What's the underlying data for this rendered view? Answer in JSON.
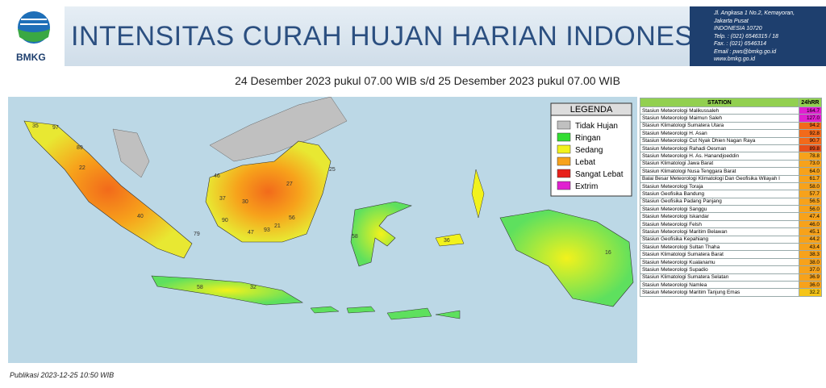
{
  "header": {
    "logo": "BMKG",
    "title": "INTENSITAS CURAH HUJAN HARIAN INDONESIA",
    "address": [
      "Jl. Angkasa 1 No.2, Kemayoran,",
      "Jakarta Pusat",
      "INDONESIA 10720",
      "Telp.  : (021) 6546315 / 18",
      "Fax.   : (021) 6546314",
      "Email : pws@bmkg.go.id",
      "www.bmkg.go.id"
    ]
  },
  "subtitle": "24 Desember 2023 pukul 07.00 WIB s/d 25 Desember 2023 pukul 07.00 WIB",
  "legend": {
    "title": "LEGENDA",
    "items": [
      {
        "label": "Tidak Hujan",
        "color": "#c0c0c0"
      },
      {
        "label": "Ringan",
        "color": "#33dd33"
      },
      {
        "label": "Sedang",
        "color": "#f2f21c"
      },
      {
        "label": "Lebat",
        "color": "#f7a21b"
      },
      {
        "label": "Sangat Lebat",
        "color": "#e8201a"
      },
      {
        "label": "Extrim",
        "color": "#e020d0"
      }
    ]
  },
  "map_labels": [
    "35",
    "97",
    "89",
    "22",
    "40",
    "46",
    "37",
    "30",
    "27",
    "56",
    "93",
    "47",
    "21",
    "90",
    "79",
    "58",
    "36",
    "16",
    "32",
    "58",
    "25"
  ],
  "table": {
    "columns": [
      "STATION",
      "24hRR"
    ],
    "rows": [
      [
        "Stasiun Meteorologi Malikussaleh",
        "164.7",
        "#e020d0"
      ],
      [
        "Stasiun Meteorologi Maimun Saleh",
        "127.0",
        "#e020d0"
      ],
      [
        "Stasiun Klimatologi Sumatera Utara",
        "94.2",
        "#f26a1b"
      ],
      [
        "Stasiun Meteorologi H. Asan",
        "92.8",
        "#f26a1b"
      ],
      [
        "Stasiun Meteorologi Cut Nyak Dhien Nagan Raya",
        "90.7",
        "#f26a1b"
      ],
      [
        "Stasiun Meteorologi Rahadi Oesman",
        "89.8",
        "#e8501a"
      ],
      [
        "Stasiun Meteorologi H. As. Hanandjoeddin",
        "78.8",
        "#f7a21b"
      ],
      [
        "Stasiun Klimatologi Jawa Barat",
        "73.0",
        "#f7a21b"
      ],
      [
        "Stasiun Klimatologi Nusa Tenggara Barat",
        "64.0",
        "#f7a21b"
      ],
      [
        "Balai Besar Meteorologi Klimatologi Dan Geofisika Wilayah I",
        "61.7",
        "#f7a21b"
      ],
      [
        "Stasiun Meteorologi Toraja",
        "58.0",
        "#f7a21b"
      ],
      [
        "Stasiun Geofisika Bandung",
        "57.7",
        "#f7a21b"
      ],
      [
        "Stasiun Geofisika Padang Panjang",
        "56.5",
        "#f7a21b"
      ],
      [
        "Stasiun Meteorologi Sanggu",
        "56.0",
        "#f7a21b"
      ],
      [
        "Stasiun Meteorologi Iskandar",
        "47.4",
        "#f7a21b"
      ],
      [
        "Stasiun Meteorologi Felsh",
        "46.0",
        "#f7a21b"
      ],
      [
        "Stasiun Meteorologi Maritim Belawan",
        "45.1",
        "#f7a21b"
      ],
      [
        "Stasiun Geofisika Kepahiang",
        "44.2",
        "#f7a21b"
      ],
      [
        "Stasiun Meteorologi Sultan Thaha",
        "43.4",
        "#f7a21b"
      ],
      [
        "Stasiun Klimatologi Sumatera Barat",
        "38.3",
        "#f7a21b"
      ],
      [
        "Stasiun Meteorologi Kualanamu",
        "38.0",
        "#f7a21b"
      ],
      [
        "Stasiun Meteorologi Supadio",
        "37.0",
        "#f7a21b"
      ],
      [
        "Stasiun Klimatologi Sumatera Selatan",
        "36.9",
        "#f7a21b"
      ],
      [
        "Stasiun Meteorologi Namlea",
        "36.0",
        "#f7a21b"
      ],
      [
        "Stasiun Meteorologi Maritim Tanjung Emas",
        "32.2",
        "#f5c518"
      ]
    ]
  },
  "publication": "Publikasi 2023-12-25 10:50 WIB"
}
